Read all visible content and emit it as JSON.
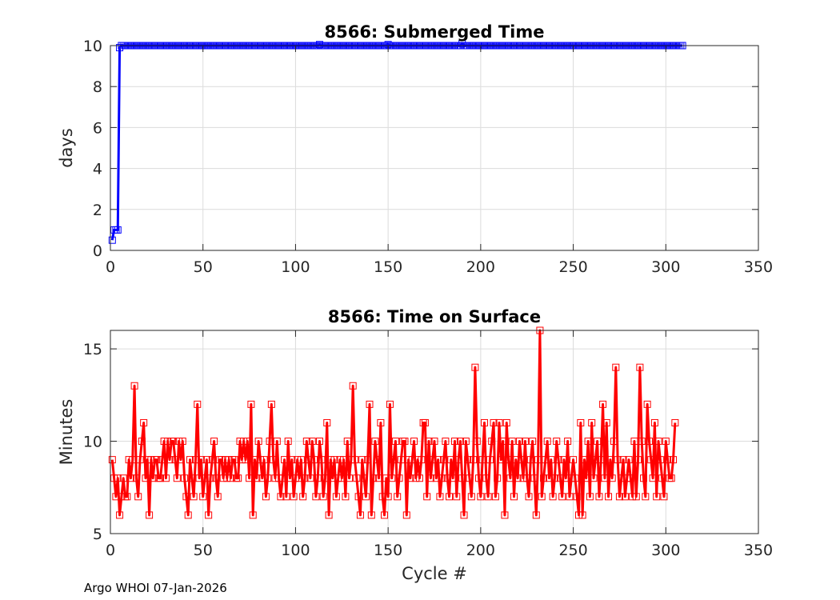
{
  "footer": {
    "credit": "Argo WHOI 07-Jan-2026"
  },
  "chart_data": [
    {
      "type": "line",
      "title": "8566: Submerged Time",
      "xlabel": "",
      "ylabel": "days",
      "xlim": [
        0,
        350
      ],
      "ylim": [
        0,
        10
      ],
      "xticks": [
        0,
        50,
        100,
        150,
        200,
        250,
        300,
        350
      ],
      "yticks": [
        0,
        2,
        4,
        6,
        8,
        10
      ],
      "grid": true,
      "marker": "square",
      "color": "#0000ff",
      "series": [
        {
          "name": "Submerged Time",
          "x_start": 1,
          "x_end": 309,
          "initial_values": [
            0.5,
            1.0,
            1.0,
            1.0,
            9.9
          ],
          "plateau_value": 10.0,
          "bumps": [
            [
              113,
              10.05
            ],
            [
              150,
              10.05
            ],
            [
              190,
              10.1
            ]
          ]
        }
      ]
    },
    {
      "type": "line",
      "title": "8566: Time on Surface",
      "xlabel": "Cycle #",
      "ylabel": "Minutes",
      "xlim": [
        0,
        350
      ],
      "ylim": [
        5,
        16
      ],
      "xticks": [
        0,
        50,
        100,
        150,
        200,
        250,
        300,
        350
      ],
      "yticks": [
        5,
        10,
        15
      ],
      "grid": true,
      "marker": "square",
      "color": "#ff0000",
      "series": [
        {
          "name": "Time on Surface",
          "x_start": 1,
          "values": [
            9,
            8,
            7,
            8,
            6,
            7,
            8,
            7,
            7,
            9,
            8,
            9,
            13,
            8,
            7,
            9,
            10,
            11,
            8,
            9,
            6,
            9,
            8,
            9,
            9,
            8,
            8,
            9,
            10,
            8,
            10,
            9,
            10,
            10,
            9,
            8,
            10,
            9,
            10,
            8,
            7,
            6,
            9,
            8,
            7,
            9,
            12,
            8,
            9,
            7,
            8,
            9,
            6,
            8,
            9,
            10,
            8,
            7,
            9,
            9,
            8,
            9,
            8,
            9,
            8,
            9,
            9,
            8,
            8,
            10,
            9,
            10,
            9,
            10,
            8,
            12,
            6,
            9,
            8,
            10,
            9,
            8,
            9,
            7,
            8,
            10,
            12,
            9,
            8,
            10,
            8,
            7,
            8,
            9,
            7,
            10,
            8,
            9,
            7,
            8,
            9,
            8,
            9,
            7,
            8,
            10,
            9,
            8,
            10,
            9,
            7,
            8,
            10,
            9,
            7,
            8,
            11,
            6,
            9,
            8,
            9,
            7,
            8,
            9,
            8,
            9,
            7,
            10,
            8,
            9,
            13,
            9,
            8,
            7,
            6,
            9,
            8,
            7,
            9,
            12,
            6,
            8,
            10,
            9,
            8,
            11,
            7,
            6,
            8,
            7,
            12,
            8,
            9,
            10,
            7,
            8,
            9,
            10,
            10,
            6,
            9,
            8,
            9,
            10,
            8,
            9,
            8,
            9,
            11,
            11,
            7,
            10,
            8,
            9,
            10,
            8,
            9,
            7,
            8,
            9,
            10,
            8,
            7,
            9,
            8,
            10,
            7,
            9,
            10,
            8,
            6,
            10,
            9,
            8,
            7,
            9,
            14,
            10,
            8,
            7,
            9,
            11,
            8,
            7,
            9,
            10,
            11,
            7,
            8,
            11,
            9,
            10,
            6,
            11,
            9,
            8,
            10,
            7,
            9,
            8,
            10,
            9,
            8,
            10,
            8,
            7,
            9,
            10,
            8,
            6,
            9,
            16,
            7,
            8,
            9,
            10,
            8,
            9,
            7,
            8,
            10,
            9,
            8,
            7,
            9,
            8,
            10,
            7,
            8,
            9,
            8,
            7,
            6,
            11,
            6,
            9,
            8,
            10,
            7,
            11,
            8,
            9,
            10,
            7,
            9,
            12,
            8,
            11,
            7,
            9,
            8,
            10,
            14,
            9,
            7,
            8,
            9,
            7,
            8,
            9,
            8,
            7,
            10,
            7,
            9,
            14,
            10,
            8,
            7,
            12,
            10,
            9,
            8,
            11,
            7,
            10,
            9,
            8,
            7,
            10,
            9,
            8,
            8,
            9,
            11
          ]
        }
      ]
    }
  ]
}
